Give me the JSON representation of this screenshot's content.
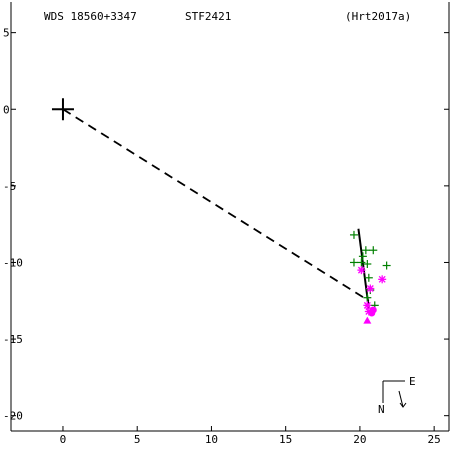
{
  "header": {
    "wds": "WDS 18560+3347",
    "disc": "STF2421",
    "ref": "(Hrt2017a)"
  },
  "colors": {
    "axis": "#000000",
    "plus_obs": "#008000",
    "star_obs": "#ff00ff",
    "recent_obs": "#ff00ff",
    "orbit": "#000000"
  },
  "chart_data": {
    "type": "scatter",
    "title": "",
    "xlabel": "",
    "ylabel": "",
    "xlim": [
      -3.5,
      26
    ],
    "ylim": [
      -21,
      7
    ],
    "x_ticks": [
      0,
      5,
      10,
      15,
      20,
      25
    ],
    "y_ticks": [
      5,
      0,
      -5,
      -10,
      -15,
      -20
    ],
    "primary": {
      "x": 0,
      "y": 0,
      "symbol": "large-plus"
    },
    "series": [
      {
        "marker": "plus",
        "color": "#008000",
        "points": [
          {
            "x": 19.6,
            "y": -8.2
          },
          {
            "x": 19.6,
            "y": -10.0
          },
          {
            "x": 20.1,
            "y": -10.0
          },
          {
            "x": 20.2,
            "y": -9.6
          },
          {
            "x": 20.5,
            "y": -10.1
          },
          {
            "x": 20.4,
            "y": -9.2
          },
          {
            "x": 20.9,
            "y": -9.2
          },
          {
            "x": 21.8,
            "y": -10.2
          },
          {
            "x": 20.6,
            "y": -11.0
          },
          {
            "x": 20.7,
            "y": -11.8
          },
          {
            "x": 20.5,
            "y": -12.3
          },
          {
            "x": 21.0,
            "y": -12.8
          }
        ]
      },
      {
        "marker": "star",
        "color": "#ff00ff",
        "points": [
          {
            "x": 20.1,
            "y": -10.5
          },
          {
            "x": 21.5,
            "y": -11.1
          },
          {
            "x": 20.7,
            "y": -11.7
          },
          {
            "x": 20.5,
            "y": -12.8
          },
          {
            "x": 20.6,
            "y": -13.2
          }
        ]
      },
      {
        "marker": "filled-circle",
        "color": "#ff00ff",
        "points": [
          {
            "x": 20.9,
            "y": -13.1
          },
          {
            "x": 20.8,
            "y": -13.3
          }
        ]
      },
      {
        "marker": "triangle",
        "color": "#ff00ff",
        "points": [
          {
            "x": 20.5,
            "y": -13.8
          }
        ]
      }
    ],
    "orbit_segment": [
      {
        "x": 19.9,
        "y": -7.8
      },
      {
        "x": 20.6,
        "y": -13.0
      }
    ],
    "dashed_line": [
      {
        "x": 0,
        "y": 0
      },
      {
        "x": 20.6,
        "y": -12.5
      }
    ],
    "orientation": {
      "north_label": "N",
      "east_label": "E",
      "placement": "bottom-right"
    }
  }
}
